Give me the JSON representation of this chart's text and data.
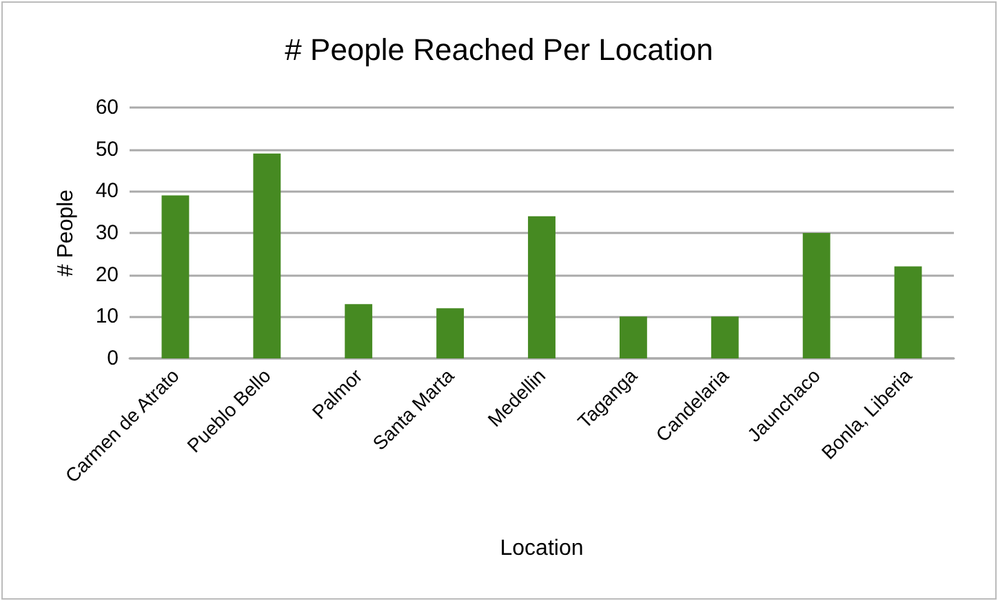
{
  "chart_data": {
    "type": "bar",
    "title": "# People Reached Per Location",
    "xlabel": "Location",
    "ylabel": "# People",
    "categories": [
      "Carmen de Atrato",
      "Pueblo Bello",
      "Palmor",
      "Santa Marta",
      "Medellin",
      "Taganga",
      "Candelaria",
      "Jaunchaco",
      "Bonla, Liberia"
    ],
    "values": [
      39,
      49,
      13,
      12,
      34,
      10,
      10,
      30,
      22
    ],
    "color": "#468a22",
    "ylim": [
      0,
      60
    ],
    "yticks": [
      0,
      10,
      20,
      30,
      40,
      50,
      60
    ],
    "grid": "y"
  }
}
